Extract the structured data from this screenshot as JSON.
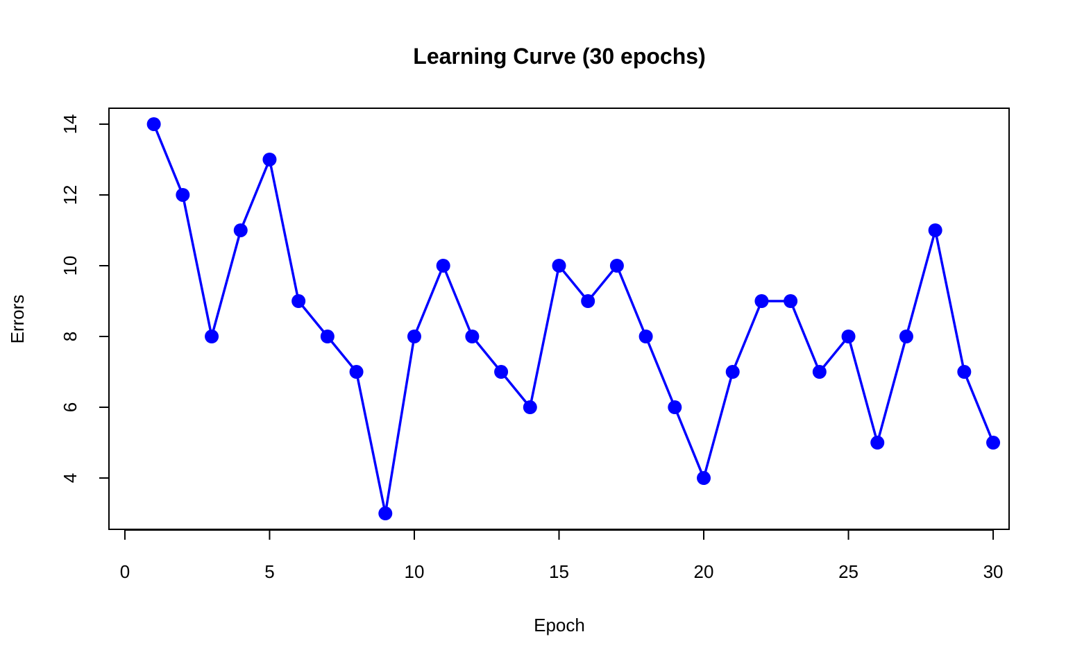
{
  "chart_data": {
    "type": "line",
    "title": "Learning Curve (30 epochs)",
    "xlabel": "Epoch",
    "ylabel": "Errors",
    "xlim": [
      -0.55,
      30.55
    ],
    "ylim": [
      2.55,
      14.45
    ],
    "x_ticks": [
      0,
      5,
      10,
      15,
      20,
      25,
      30
    ],
    "y_ticks": [
      4,
      6,
      8,
      10,
      12,
      14
    ],
    "x": [
      1,
      2,
      3,
      4,
      5,
      6,
      7,
      8,
      9,
      10,
      11,
      12,
      13,
      14,
      15,
      16,
      17,
      18,
      19,
      20,
      21,
      22,
      23,
      24,
      25,
      26,
      27,
      28,
      29,
      30
    ],
    "series": [
      {
        "name": "Errors",
        "color": "#0000ff",
        "values": [
          14,
          12,
          8,
          11,
          13,
          9,
          8,
          7,
          3,
          8,
          10,
          8,
          7,
          6,
          10,
          9,
          10,
          8,
          6,
          4,
          7,
          9,
          9,
          7,
          8,
          5,
          8,
          11,
          7,
          5
        ]
      }
    ],
    "grid": false,
    "legend": "none"
  }
}
